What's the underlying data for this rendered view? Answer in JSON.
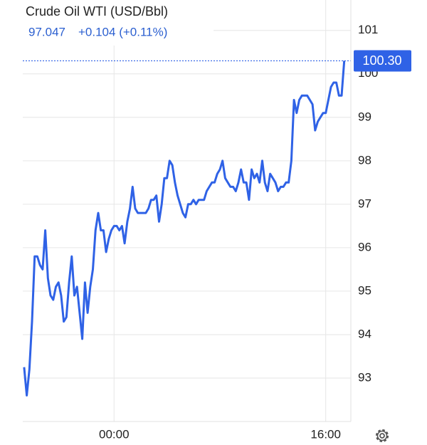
{
  "chart_data": {
    "type": "line",
    "title": "Crude Oil WTI (USD/Bbl)",
    "quote": {
      "price": "97.047",
      "change": "+0.104 (+0.11%)"
    },
    "x": [
      -6.8,
      -6.6,
      -6.4,
      -6.2,
      -6.0,
      -5.8,
      -5.6,
      -5.4,
      -5.2,
      -5.0,
      -4.8,
      -4.6,
      -4.4,
      -4.2,
      -4.0,
      -3.8,
      -3.6,
      -3.4,
      -3.2,
      -3.0,
      -2.8,
      -2.6,
      -2.4,
      -2.2,
      -2.0,
      -1.8,
      -1.6,
      -1.4,
      -1.2,
      -1.0,
      -0.8,
      -0.6,
      -0.4,
      -0.2,
      0.0,
      0.2,
      0.4,
      0.6,
      0.8,
      1.0,
      1.2,
      1.4,
      1.6,
      1.8,
      2.0,
      2.2,
      2.4,
      2.6,
      2.8,
      3.0,
      3.2,
      3.4,
      3.6,
      3.8,
      4.0,
      4.2,
      4.4,
      4.6,
      4.8,
      5.0,
      5.2,
      5.4,
      5.6,
      5.8,
      6.0,
      6.2,
      6.4,
      6.6,
      6.8,
      7.0,
      7.2,
      7.4,
      7.6,
      7.8,
      8.0,
      8.2,
      8.4,
      8.6,
      8.8,
      9.0,
      9.2,
      9.4,
      9.6,
      9.8,
      10.0,
      10.2,
      10.4,
      10.6,
      10.8,
      11.0,
      11.2,
      11.4,
      11.6,
      11.8,
      12.0,
      12.2,
      12.4,
      12.6,
      12.8,
      13.0,
      13.2,
      13.4,
      13.6,
      13.8,
      14.0,
      14.2,
      14.4,
      14.6,
      14.8,
      15.0,
      15.2,
      15.4,
      15.6,
      15.8,
      16.0,
      16.2,
      16.4,
      16.6,
      16.8,
      17.0,
      17.2,
      17.4
    ],
    "series": [
      {
        "color": "#2f62e6",
        "values": [
          93.25,
          92.6,
          93.2,
          94.3,
          95.8,
          95.8,
          95.6,
          95.5,
          96.4,
          95.3,
          94.9,
          94.8,
          95.1,
          95.2,
          94.9,
          94.3,
          94.4,
          95.2,
          95.8,
          94.9,
          95.1,
          94.5,
          93.9,
          95.2,
          94.5,
          95.1,
          95.5,
          96.4,
          96.8,
          96.4,
          96.4,
          95.9,
          96.2,
          96.4,
          96.5,
          96.5,
          96.4,
          96.5,
          96.1,
          96.6,
          96.9,
          97.4,
          96.9,
          96.8,
          96.8,
          96.8,
          96.8,
          96.9,
          97.1,
          97.1,
          97.2,
          96.6,
          97.0,
          97.6,
          97.6,
          98.0,
          97.9,
          97.5,
          97.2,
          97.0,
          96.8,
          96.7,
          97.0,
          97.0,
          97.1,
          97.0,
          97.1,
          97.1,
          97.1,
          97.3,
          97.4,
          97.5,
          97.5,
          97.7,
          97.8,
          98.0,
          97.6,
          97.5,
          97.4,
          97.4,
          97.3,
          97.5,
          97.8,
          97.5,
          97.5,
          97.1,
          97.8,
          97.6,
          97.7,
          97.5,
          98.0,
          97.5,
          97.3,
          97.7,
          97.6,
          97.5,
          97.3,
          97.4,
          97.4,
          97.5,
          97.5,
          98.0,
          99.4,
          99.1,
          99.4,
          99.5,
          99.5,
          99.5,
          99.4,
          99.3,
          98.7,
          98.9,
          99.0,
          99.1,
          99.1,
          99.4,
          99.7,
          99.8,
          99.8,
          99.5,
          99.5,
          100.3
        ]
      }
    ],
    "last_price": {
      "value": 100.3,
      "label": "100.30"
    },
    "xlim": [
      -6.9,
      17.9
    ],
    "xticks": [
      {
        "value": 0,
        "label": "00:00"
      },
      {
        "value": 16,
        "label": "16:00"
      }
    ],
    "ylim": [
      92,
      101.7
    ],
    "yticks": [
      93,
      94,
      95,
      96,
      97,
      98,
      99,
      100,
      101
    ],
    "grid": true
  }
}
